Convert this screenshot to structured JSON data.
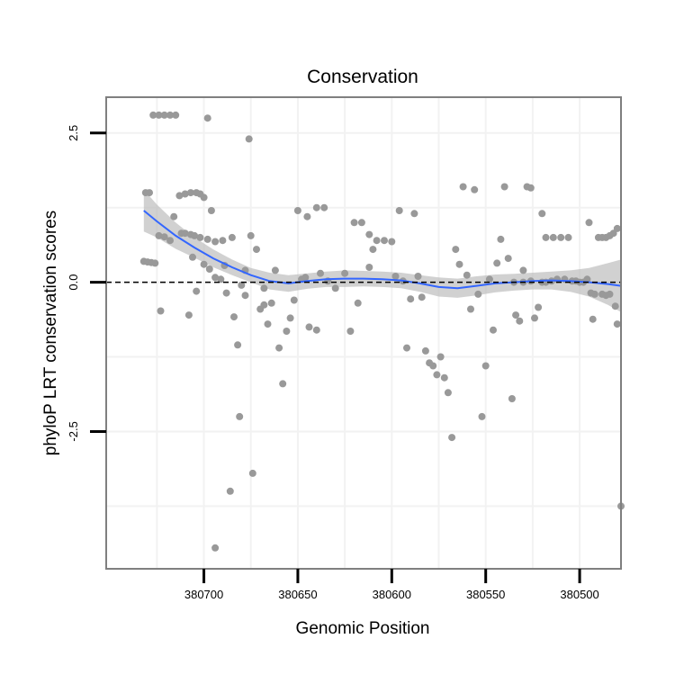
{
  "chart_data": {
    "type": "scatter",
    "title": "Conservation",
    "xlabel": "Genomic Position",
    "ylabel": "phyloP LRT conservation scores",
    "x_reversed": true,
    "xlim": [
      380478,
      380752
    ],
    "ylim": [
      -4.8,
      3.1
    ],
    "x_ticks": [
      380700,
      380650,
      380600,
      380550,
      380500
    ],
    "x_tick_labels": [
      "380700",
      "380650",
      "380600",
      "380550",
      "380500"
    ],
    "y_ticks": [
      2.5,
      0.0,
      -2.5
    ],
    "y_tick_labels": [
      "2.5",
      "0.0",
      "-2.5"
    ],
    "grid": true,
    "reference_line": {
      "y": 0,
      "style": "dashed"
    },
    "points": [
      [
        380732,
        0.35
      ],
      [
        380730,
        0.34
      ],
      [
        380728,
        0.33
      ],
      [
        380726,
        0.32
      ],
      [
        380723,
        -0.48
      ],
      [
        380731,
        1.5
      ],
      [
        380729,
        1.5
      ],
      [
        380727,
        2.8
      ],
      [
        380724,
        2.8
      ],
      [
        380721,
        2.8
      ],
      [
        380718,
        2.8
      ],
      [
        380715,
        2.8
      ],
      [
        380724,
        0.78
      ],
      [
        380721,
        0.76
      ],
      [
        380718,
        0.7
      ],
      [
        380716,
        1.1
      ],
      [
        380713,
        1.45
      ],
      [
        380710,
        1.48
      ],
      [
        380707,
        1.5
      ],
      [
        380704,
        1.5
      ],
      [
        380702,
        1.48
      ],
      [
        380700,
        1.42
      ],
      [
        380696,
        1.2
      ],
      [
        380712,
        0.82
      ],
      [
        380710,
        0.82
      ],
      [
        380707,
        0.8
      ],
      [
        380705,
        0.78
      ],
      [
        380708,
        -0.55
      ],
      [
        380704,
        -0.15
      ],
      [
        380702,
        0.75
      ],
      [
        380698,
        0.72
      ],
      [
        380694,
        0.68
      ],
      [
        380690,
        0.7
      ],
      [
        380685,
        0.75
      ],
      [
        380689,
        0.28
      ],
      [
        380698,
        2.75
      ],
      [
        380706,
        0.42
      ],
      [
        380700,
        0.3
      ],
      [
        380697,
        0.22
      ],
      [
        380694,
        0.08
      ],
      [
        380691,
        0.05
      ],
      [
        380688,
        -0.18
      ],
      [
        380684,
        -0.58
      ],
      [
        380682,
        -1.05
      ],
      [
        380681,
        -2.25
      ],
      [
        380678,
        0.2
      ],
      [
        380676,
        2.4
      ],
      [
        380675,
        0.78
      ],
      [
        380672,
        0.55
      ],
      [
        380670,
        -0.45
      ],
      [
        380668,
        -0.1
      ],
      [
        380666,
        -0.7
      ],
      [
        380664,
        -0.35
      ],
      [
        380662,
        0.2
      ],
      [
        380678,
        -0.22
      ],
      [
        380674,
        -3.2
      ],
      [
        380680,
        -0.05
      ],
      [
        380668,
        -0.38
      ],
      [
        380660,
        -1.1
      ],
      [
        380658,
        -1.7
      ],
      [
        380686,
        -3.5
      ],
      [
        380694,
        -4.45
      ],
      [
        380656,
        -0.82
      ],
      [
        380654,
        -0.6
      ],
      [
        380652,
        -0.3
      ],
      [
        380650,
        1.2
      ],
      [
        380648,
        0.05
      ],
      [
        380646,
        0.08
      ],
      [
        380644,
        -0.75
      ],
      [
        380640,
        -0.8
      ],
      [
        380640,
        1.25
      ],
      [
        380636,
        1.25
      ],
      [
        380645,
        1.1
      ],
      [
        380638,
        0.15
      ],
      [
        380634,
        0.02
      ],
      [
        380630,
        -0.1
      ],
      [
        380625,
        0.15
      ],
      [
        380620,
        1.0
      ],
      [
        380616,
        1.0
      ],
      [
        380612,
        0.8
      ],
      [
        380610,
        0.55
      ],
      [
        380622,
        -0.82
      ],
      [
        380618,
        -0.35
      ],
      [
        380612,
        0.25
      ],
      [
        380608,
        0.7
      ],
      [
        380604,
        0.7
      ],
      [
        380600,
        0.68
      ],
      [
        380598,
        0.1
      ],
      [
        380596,
        1.2
      ],
      [
        380594,
        0.02
      ],
      [
        380592,
        -1.1
      ],
      [
        380590,
        -0.28
      ],
      [
        380588,
        1.15
      ],
      [
        380586,
        0.1
      ],
      [
        380584,
        -0.25
      ],
      [
        380582,
        -1.15
      ],
      [
        380580,
        -1.35
      ],
      [
        380578,
        -1.4
      ],
      [
        380576,
        -1.55
      ],
      [
        380574,
        -1.25
      ],
      [
        380572,
        -1.6
      ],
      [
        380570,
        -1.85
      ],
      [
        380568,
        -2.6
      ],
      [
        380566,
        0.55
      ],
      [
        380564,
        0.3
      ],
      [
        380562,
        1.6
      ],
      [
        380560,
        0.12
      ],
      [
        380558,
        -0.45
      ],
      [
        380556,
        1.55
      ],
      [
        380554,
        -0.2
      ],
      [
        380552,
        -2.25
      ],
      [
        380550,
        -1.4
      ],
      [
        380548,
        0.05
      ],
      [
        380546,
        -0.8
      ],
      [
        380544,
        0.32
      ],
      [
        380542,
        0.72
      ],
      [
        380540,
        1.6
      ],
      [
        380538,
        0.4
      ],
      [
        380536,
        -1.95
      ],
      [
        380534,
        -0.55
      ],
      [
        380532,
        -0.65
      ],
      [
        380530,
        0.2
      ],
      [
        380528,
        1.6
      ],
      [
        380526,
        1.58
      ],
      [
        380524,
        -0.6
      ],
      [
        380522,
        -0.42
      ],
      [
        380520,
        1.15
      ],
      [
        380518,
        0.75
      ],
      [
        380514,
        0.75
      ],
      [
        380510,
        0.75
      ],
      [
        380506,
        0.75
      ],
      [
        380502,
        0.02
      ],
      [
        380498,
        0.0
      ],
      [
        380495,
        1.0
      ],
      [
        380493,
        -0.62
      ],
      [
        380490,
        0.75
      ],
      [
        380488,
        0.75
      ],
      [
        380486,
        0.75
      ],
      [
        380484,
        0.78
      ],
      [
        380482,
        0.82
      ],
      [
        380480,
        0.9
      ],
      [
        380480,
        -0.7
      ],
      [
        380481,
        -0.4
      ],
      [
        380488,
        -0.2
      ],
      [
        380486,
        -0.22
      ],
      [
        380484,
        -0.2
      ],
      [
        380492,
        -0.2
      ],
      [
        380494,
        -0.18
      ],
      [
        380496,
        0.05
      ],
      [
        380500,
        0.0
      ],
      [
        380520,
        0.0
      ],
      [
        380518,
        0.0
      ],
      [
        380515,
        0.02
      ],
      [
        380512,
        0.05
      ],
      [
        380508,
        0.05
      ],
      [
        380504,
        0.02
      ],
      [
        380526,
        0.02
      ],
      [
        380530,
        0.0
      ],
      [
        380535,
        0.0
      ],
      [
        380478,
        -3.75
      ]
    ],
    "smooth": {
      "x": [
        380732,
        380725,
        380715,
        380705,
        380695,
        380685,
        380675,
        380665,
        380655,
        380645,
        380635,
        380625,
        380615,
        380605,
        380595,
        380585,
        380575,
        380565,
        380555,
        380545,
        380535,
        380525,
        380515,
        380505,
        380495,
        380485,
        380478
      ],
      "y": [
        1.2,
        1.02,
        0.78,
        0.58,
        0.4,
        0.25,
        0.12,
        0.02,
        -0.02,
        0.02,
        0.05,
        0.06,
        0.06,
        0.05,
        0.03,
        -0.02,
        -0.08,
        -0.1,
        -0.06,
        -0.02,
        0.0,
        0.02,
        0.03,
        0.02,
        0.0,
        -0.03,
        -0.06
      ],
      "se_upper": [
        1.55,
        1.3,
        1.0,
        0.75,
        0.55,
        0.38,
        0.24,
        0.16,
        0.12,
        0.15,
        0.18,
        0.2,
        0.19,
        0.18,
        0.16,
        0.12,
        0.08,
        0.06,
        0.1,
        0.13,
        0.14,
        0.16,
        0.18,
        0.2,
        0.24,
        0.32,
        0.38
      ],
      "se_lower": [
        0.85,
        0.75,
        0.56,
        0.41,
        0.25,
        0.12,
        0.0,
        -0.12,
        -0.16,
        -0.11,
        -0.08,
        -0.08,
        -0.07,
        -0.08,
        -0.1,
        -0.16,
        -0.24,
        -0.26,
        -0.22,
        -0.17,
        -0.14,
        -0.12,
        -0.12,
        -0.16,
        -0.24,
        -0.38,
        -0.5
      ]
    },
    "colors": {
      "points": "#999999",
      "smooth_line": "#3366FF",
      "ribbon": "#BDBDBD",
      "panel_border": "#7F7F7F",
      "grid": "#F2F2F2",
      "axis_ticks": "#000000"
    }
  }
}
